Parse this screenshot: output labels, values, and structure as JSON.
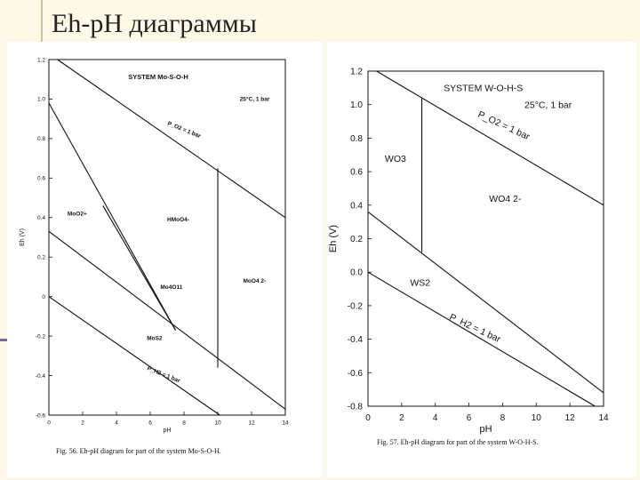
{
  "slide": {
    "title": "Eh-pH диаграммы"
  },
  "chart_data": [
    {
      "type": "line",
      "title": "SYSTEM Mo-S-O-H",
      "conditions": "25°C, 1 bar",
      "xlabel": "pH",
      "ylabel": "Eh (V)",
      "xlim": [
        0,
        14
      ],
      "ylim": [
        -0.6,
        1.2
      ],
      "xticks": [
        "0",
        "2",
        "4",
        "6",
        "8",
        "10",
        "12",
        "14"
      ],
      "yticks": [
        "1.2",
        "1.0",
        "0.8",
        "0.6",
        "0.4",
        "0.2",
        "0",
        "-0.2",
        "-0.4",
        "-0.6"
      ],
      "caption": "Fig. 56. Eh-pH diagram for part of the system Mo-S-O-H.",
      "boundaries": [
        {
          "name": "P_O2 = 1 bar",
          "x": [
            0,
            14
          ],
          "y": [
            1.23,
            0.4
          ]
        },
        {
          "name": "P_H2 = 1 bar",
          "x": [
            0,
            14
          ],
          "y": [
            0.0,
            -0.83
          ]
        },
        {
          "name": "",
          "x": [
            0,
            14
          ],
          "y": [
            0.33,
            -0.57
          ]
        },
        {
          "name": "",
          "x": [
            0,
            7.5
          ],
          "y": [
            0.98,
            -0.17
          ]
        },
        {
          "name": "",
          "x": [
            3.2,
            7.5
          ],
          "y": [
            0.46,
            -0.17
          ]
        },
        {
          "name": "",
          "x": [
            10,
            10
          ],
          "y": [
            0.65,
            -0.36
          ]
        }
      ],
      "labels": [
        {
          "text": "P_O2 = 1 bar",
          "x": 7.0,
          "y": 0.87
        },
        {
          "text": "MoO2+",
          "x": 1.1,
          "y": 0.41
        },
        {
          "text": "HMoO4-",
          "x": 7.0,
          "y": 0.38
        },
        {
          "text": "Mo4O11",
          "x": 6.6,
          "y": 0.04
        },
        {
          "text": "MoO4 2-",
          "x": 11.5,
          "y": 0.07
        },
        {
          "text": "MoS2",
          "x": 5.8,
          "y": -0.22
        },
        {
          "text": "P_H2 = 1 bar",
          "x": 5.8,
          "y": -0.37
        }
      ]
    },
    {
      "type": "line",
      "title": "SYSTEM W-O-H-S",
      "conditions": "25°C, 1 bar",
      "xlabel": "pH",
      "ylabel": "Eh (V)",
      "xlim": [
        0,
        14
      ],
      "ylim": [
        -0.8,
        1.2
      ],
      "xticks": [
        "0",
        "2",
        "4",
        "6",
        "8",
        "10",
        "12",
        "14"
      ],
      "yticks": [
        "1.2",
        "1.0",
        "0.8",
        "0.6",
        "0.4",
        "0.2",
        "0.0",
        "-0.2",
        "-0.4",
        "-0.6",
        "-0.8"
      ],
      "caption": "Fig. 57. Eh-pH diagram for part of the system W-O-H-S.",
      "boundaries": [
        {
          "name": "P_O2 = 1 bar",
          "x": [
            0,
            14
          ],
          "y": [
            1.23,
            0.4
          ]
        },
        {
          "name": "P_H2 = 1 bar",
          "x": [
            0,
            14
          ],
          "y": [
            0.0,
            -0.83
          ]
        },
        {
          "name": "",
          "x": [
            0,
            14
          ],
          "y": [
            0.36,
            -0.72
          ]
        },
        {
          "name": "",
          "x": [
            3.2,
            3.2
          ],
          "y": [
            1.04,
            0.12
          ]
        }
      ],
      "labels": [
        {
          "text": "P_O2 = 1 bar",
          "x": 6.5,
          "y": 0.93
        },
        {
          "text": "WO3",
          "x": 1.0,
          "y": 0.66
        },
        {
          "text": "WO4 2-",
          "x": 7.2,
          "y": 0.42
        },
        {
          "text": "WS2",
          "x": 2.5,
          "y": -0.08
        },
        {
          "text": "P_H2 = 1 bar",
          "x": 4.8,
          "y": -0.28
        }
      ]
    }
  ]
}
